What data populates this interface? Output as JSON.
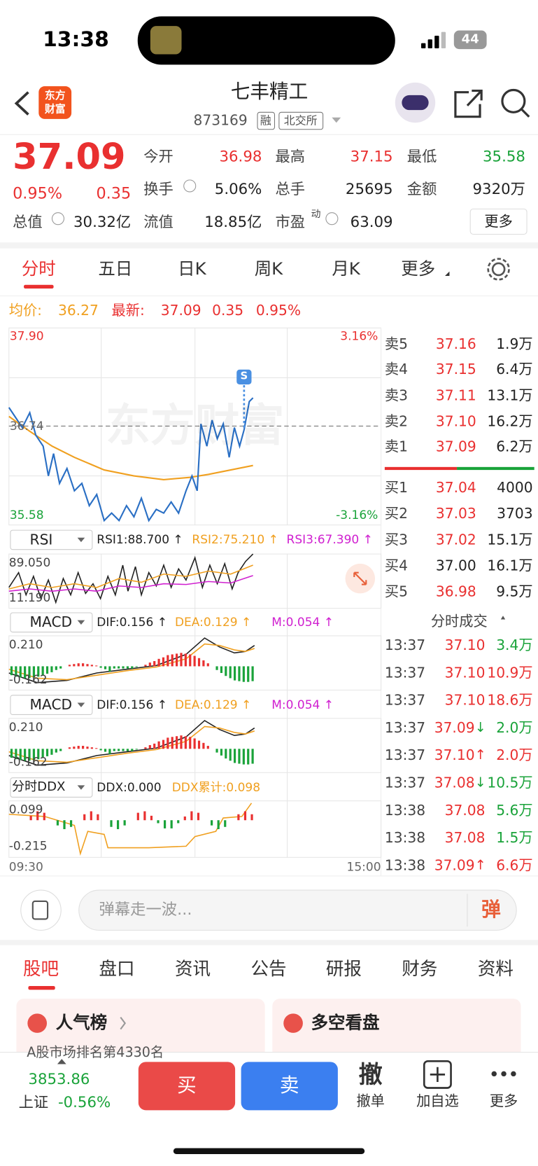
{
  "status": {
    "time": "13:38",
    "battery": "44"
  },
  "header": {
    "logo": "东方财富",
    "title": "七丰精工",
    "code": "873169",
    "tags": [
      "融",
      "北交所"
    ]
  },
  "quote": {
    "price": "37.09",
    "change_pct": "0.95%",
    "change": "0.35",
    "fields": [
      {
        "label": "今开",
        "value": "36.98"
      },
      {
        "label": "最高",
        "value": "37.15"
      },
      {
        "label": "最低",
        "value": "35.58"
      },
      {
        "label": "换手",
        "value": "5.06%"
      },
      {
        "label": "总手",
        "value": "25695"
      },
      {
        "label": "金额",
        "value": "9320万"
      },
      {
        "label": "总值",
        "value": "30.32亿"
      },
      {
        "label": "流值",
        "value": "18.85亿"
      },
      {
        "label": "市盈",
        "sup": "动",
        "value": "63.09"
      }
    ],
    "more": "更多"
  },
  "tabs": [
    "分时",
    "五日",
    "日K",
    "周K",
    "月K",
    "更多"
  ],
  "summary": {
    "avg_label": "均价:",
    "avg": "36.27",
    "latest_label": "最新:",
    "latest": "37.09",
    "change": "0.35",
    "change_pct": "0.95%"
  },
  "chart": {
    "price_high": "37.90",
    "price_mid": "36.74",
    "price_low": "35.58",
    "pct_high": "3.16%",
    "pct_low": "-3.16%",
    "time_start": "09:30",
    "time_end": "15:00",
    "watermark": "东方财富",
    "marker": "S"
  },
  "indicators": [
    {
      "selector": "RSI",
      "values": [
        "RSI1:88.700 ↑",
        "RSI2:75.210 ↑",
        "RSI3:67.390 ↑"
      ],
      "high": "89.050",
      "low": "11.190"
    },
    {
      "selector": "MACD",
      "values": [
        "DIF:0.156 ↑",
        "DEA:0.129 ↑",
        "M:0.054 ↑"
      ],
      "high": "0.210",
      "low": "-0.162"
    },
    {
      "selector": "MACD",
      "values": [
        "DIF:0.156 ↑",
        "DEA:0.129 ↑",
        "M:0.054 ↑"
      ],
      "high": "0.210",
      "low": "-0.162"
    },
    {
      "selector": "分时DDX",
      "values": [
        "DDX:0.000",
        "DDX累计:0.098"
      ],
      "high": "0.099",
      "low": "-0.215"
    }
  ],
  "order_book": {
    "asks": [
      {
        "label": "卖5",
        "price": "37.16",
        "volume": "1.9万"
      },
      {
        "label": "卖4",
        "price": "37.15",
        "volume": "6.4万"
      },
      {
        "label": "卖3",
        "price": "37.11",
        "volume": "13.1万"
      },
      {
        "label": "卖2",
        "price": "37.10",
        "volume": "16.2万"
      },
      {
        "label": "卖1",
        "price": "37.09",
        "volume": "6.2万"
      }
    ],
    "bids": [
      {
        "label": "买1",
        "price": "37.04",
        "volume": "4000"
      },
      {
        "label": "买2",
        "price": "37.03",
        "volume": "3703"
      },
      {
        "label": "买3",
        "price": "37.02",
        "volume": "15.1万"
      },
      {
        "label": "买4",
        "price": "37.00",
        "volume": "16.1万"
      },
      {
        "label": "买5",
        "price": "36.98",
        "volume": "9.5万"
      }
    ]
  },
  "trades": {
    "title": "分时成交",
    "rows": [
      {
        "time": "13:37",
        "price": "37.10",
        "volume": "3.4万"
      },
      {
        "time": "13:37",
        "price": "37.10",
        "volume": "10.9万"
      },
      {
        "time": "13:37",
        "price": "37.10",
        "volume": "18.6万"
      },
      {
        "time": "13:37",
        "price": "37.09",
        "dir": "↓",
        "volume": "2.0万"
      },
      {
        "time": "13:37",
        "price": "37.10",
        "dir": "↑",
        "volume": "2.0万"
      },
      {
        "time": "13:37",
        "price": "37.08",
        "dir": "↓",
        "volume": "10.5万"
      },
      {
        "time": "13:38",
        "price": "37.08",
        "volume": "5.6万"
      },
      {
        "time": "13:38",
        "price": "37.08",
        "volume": "1.5万"
      },
      {
        "time": "13:38",
        "price": "37.09",
        "dir": "↑",
        "volume": "6.6万"
      }
    ]
  },
  "comment": {
    "placeholder": "弹幕走一波...",
    "button": "弹"
  },
  "sections": [
    "股吧",
    "盘口",
    "资讯",
    "公告",
    "研报",
    "财务",
    "资料"
  ],
  "cards": [
    {
      "title": "人气榜",
      "note": "A股市场排名第4330名"
    },
    {
      "title": "多空看盘"
    }
  ],
  "footer": {
    "index_value": "3853.86",
    "index_name": "上证",
    "index_change": "-0.56%",
    "buy": "买",
    "sell": "卖",
    "actions": [
      {
        "icon": "撤",
        "label": "撤单"
      },
      {
        "label": "加自选"
      },
      {
        "label": "更多"
      }
    ]
  }
}
